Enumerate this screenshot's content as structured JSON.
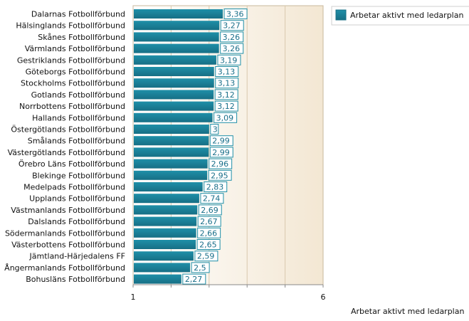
{
  "chart_data": {
    "type": "bar",
    "orientation": "horizontal",
    "categories": [
      "Dalarnas Fotbollförbund",
      "Hälsinglands Fotbollförbund",
      "Skånes Fotbollförbund",
      "Värmlands Fotbollförbund",
      "Gestriklands Fotbollförbund",
      "Göteborgs Fotbollförbund",
      "Stockholms Fotbollförbund",
      "Gotlands Fotbollförbund",
      "Norrbottens Fotbollförbund",
      "Hallands Fotbollförbund",
      "Östergötlands Fotbollförbund",
      "Smålands Fotbollförbund",
      "Västergötlands Fotbollförbund",
      "Örebro Läns Fotbollförbund",
      "Blekinge Fotbollförbund",
      "Medelpads Fotbollförbund",
      "Upplands Fotbollförbund",
      "Västmanlands Fotbollförbund",
      "Dalslands Fotbollförbund",
      "Södermanlands Fotbollförbund",
      "Västerbottens Fotbollförbund",
      "Jämtland-Härjedalens FF",
      "Ångermanlands Fotbollförbund",
      "Bohusläns Fotbollförbund"
    ],
    "series": [
      {
        "name": "Arbetar aktivt med ledarplan",
        "values": [
          3.36,
          3.27,
          3.26,
          3.26,
          3.19,
          3.13,
          3.13,
          3.12,
          3.12,
          3.09,
          3,
          2.99,
          2.99,
          2.96,
          2.95,
          2.83,
          2.74,
          2.69,
          2.67,
          2.66,
          2.65,
          2.59,
          2.5,
          2.27
        ],
        "value_labels": [
          "3,36",
          "3,27",
          "3,26",
          "3,26",
          "3,19",
          "3,13",
          "3,13",
          "3,12",
          "3,12",
          "3,09",
          "3",
          "2,99",
          "2,99",
          "2,96",
          "2,95",
          "2,83",
          "2,74",
          "2,69",
          "2,67",
          "2,66",
          "2,65",
          "2,59",
          "2,5",
          "2,27"
        ]
      }
    ],
    "xlim": [
      1,
      6
    ],
    "x_tick_labels": [
      "1",
      "6"
    ],
    "xlabel": "Arbetar aktivt med ledarplan",
    "ylabel": "",
    "title": "",
    "grid": true,
    "legend_position": "top-right",
    "colors": {
      "bar": "#1f8fa8",
      "bar_dark": "#176f85",
      "value_label_border": "#1f8fa8",
      "value_label_text": "#1a6f8a",
      "plot_bg_left": "#ffffff",
      "plot_bg_right": "#f3e7d3",
      "plot_border": "#c8b89c"
    }
  }
}
